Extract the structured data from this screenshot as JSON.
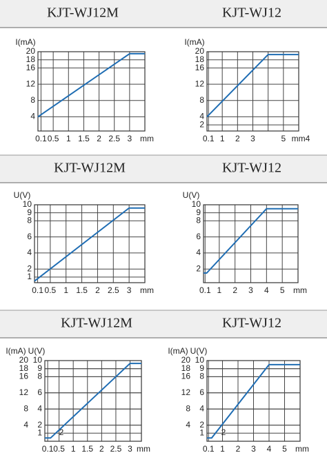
{
  "chart_data": [
    {
      "type": "line",
      "title": "KJT-WJ12M",
      "y_label": "I(mA)",
      "x_label": "mm",
      "xlim": [
        0,
        3.5
      ],
      "xticks": [
        0.1,
        0.5,
        1,
        1.5,
        2,
        2.5,
        3
      ],
      "ylim": [
        0.5,
        20
      ],
      "yticks": [
        4,
        8,
        12,
        16,
        18,
        20
      ],
      "grid": true,
      "series": [
        {
          "color": "#1f6db3",
          "x": [
            0,
            3,
            3.5
          ],
          "values": [
            4,
            19.5,
            19.5
          ]
        }
      ]
    },
    {
      "type": "line",
      "title": "KJT-WJ12",
      "y_label": "I(mA)",
      "x_label": "mm4",
      "xlim": [
        0,
        6
      ],
      "xticks": [
        0.1,
        1,
        2,
        3,
        {
          "value": 4,
          "label": null
        },
        5
      ],
      "ylim": [
        0.5,
        20
      ],
      "yticks": [
        2,
        4,
        8,
        12,
        16,
        18,
        20
      ],
      "grid": true,
      "series": [
        {
          "color": "#1f6db3",
          "x": [
            0,
            4,
            6
          ],
          "values": [
            4,
            19.3,
            19.3
          ]
        }
      ]
    },
    {
      "type": "line",
      "title": "KJT-WJ12M",
      "y_label": "U(V)",
      "x_label": "mm",
      "xlim": [
        0,
        3.5
      ],
      "xticks": [
        0.1,
        0.5,
        1,
        1.5,
        2,
        2.5,
        3
      ],
      "ylim": [
        0.3,
        10
      ],
      "yticks": [
        1,
        2,
        4,
        6,
        8,
        9,
        10
      ],
      "grid": true,
      "series": [
        {
          "color": "#1f6db3",
          "x": [
            0,
            3,
            3.5
          ],
          "values": [
            0.5,
            9.6,
            9.6
          ]
        }
      ]
    },
    {
      "type": "line",
      "title": "KJT-WJ12",
      "y_label": "U(V)",
      "x_label": "mm",
      "xlim": [
        0,
        6
      ],
      "xticks": [
        0.1,
        1,
        2,
        3,
        4,
        5
      ],
      "ylim": [
        0.3,
        10
      ],
      "yticks": [
        2,
        4,
        6,
        8,
        9,
        10
      ],
      "grid": true,
      "series": [
        {
          "color": "#1f6db3",
          "x": [
            0,
            0.2,
            4,
            6
          ],
          "values": [
            1.5,
            1.5,
            9.5,
            9.5
          ]
        }
      ]
    },
    {
      "type": "line",
      "title": "KJT-WJ12M",
      "y_label": "I(mA)",
      "y2_label": "U(V)",
      "x_label": "mm",
      "xlim": [
        0,
        3.4
      ],
      "xticks": [
        0.1,
        0.5,
        1,
        1.5,
        2,
        2.5,
        3
      ],
      "ylim": [
        0,
        20
      ],
      "yticks": [
        4,
        8,
        12,
        16,
        18,
        20
      ],
      "y2lim": [
        0,
        10
      ],
      "y2ticks": [
        1,
        2,
        4,
        6,
        8,
        9,
        10
      ],
      "grid": true,
      "annotation": "2",
      "series": [
        {
          "color": "#1f6db3",
          "x": [
            0,
            0.2,
            3,
            3.4
          ],
          "values": [
            0.8,
            0.8,
            19.3,
            19.3
          ]
        }
      ]
    },
    {
      "type": "line",
      "title": "KJT-WJ12",
      "y_label": "I(mA)",
      "y2_label": "U(V)",
      "x_label": "mm",
      "xlim": [
        0,
        6
      ],
      "xticks": [
        0.1,
        1,
        2,
        3,
        4,
        5
      ],
      "ylim": [
        0,
        20
      ],
      "yticks": [
        4,
        8,
        12,
        16,
        18,
        20
      ],
      "y2lim": [
        0,
        10
      ],
      "y2ticks": [
        1,
        2,
        4,
        6,
        8,
        9,
        10
      ],
      "grid": true,
      "annotation": "2",
      "series": [
        {
          "color": "#1f6db3",
          "x": [
            0,
            0.3,
            4,
            6
          ],
          "values": [
            0.8,
            0.8,
            19,
            19
          ]
        }
      ]
    }
  ]
}
